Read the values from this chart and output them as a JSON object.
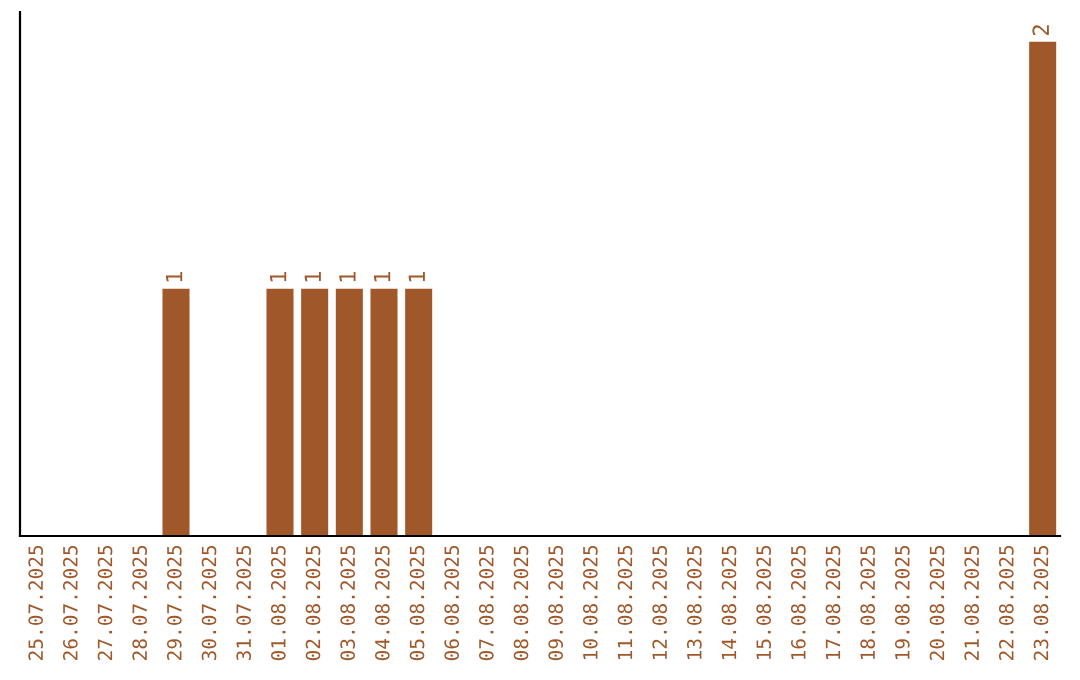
{
  "chart_data": {
    "type": "bar",
    "categories": [
      "25.07.2025",
      "26.07.2025",
      "27.07.2025",
      "28.07.2025",
      "29.07.2025",
      "30.07.2025",
      "31.07.2025",
      "01.08.2025",
      "02.08.2025",
      "03.08.2025",
      "04.08.2025",
      "05.08.2025",
      "06.08.2025",
      "07.08.2025",
      "08.08.2025",
      "09.08.2025",
      "10.08.2025",
      "11.08.2025",
      "12.08.2025",
      "13.08.2025",
      "14.08.2025",
      "15.08.2025",
      "16.08.2025",
      "17.08.2025",
      "18.08.2025",
      "19.08.2025",
      "20.08.2025",
      "21.08.2025",
      "22.08.2025",
      "23.08.2025"
    ],
    "values": [
      0,
      0,
      0,
      0,
      1,
      0,
      0,
      1,
      1,
      1,
      1,
      1,
      0,
      0,
      0,
      0,
      0,
      0,
      0,
      0,
      0,
      0,
      0,
      0,
      0,
      0,
      0,
      0,
      0,
      2
    ],
    "value_labels": [
      null,
      null,
      null,
      null,
      "1",
      null,
      null,
      "1",
      "1",
      "1",
      "1",
      "1",
      null,
      null,
      null,
      null,
      null,
      null,
      null,
      null,
      null,
      null,
      null,
      null,
      null,
      null,
      null,
      null,
      null,
      "2"
    ],
    "color": "#a0582a",
    "tick_labels": "x",
    "grid": false,
    "legend": false
  }
}
